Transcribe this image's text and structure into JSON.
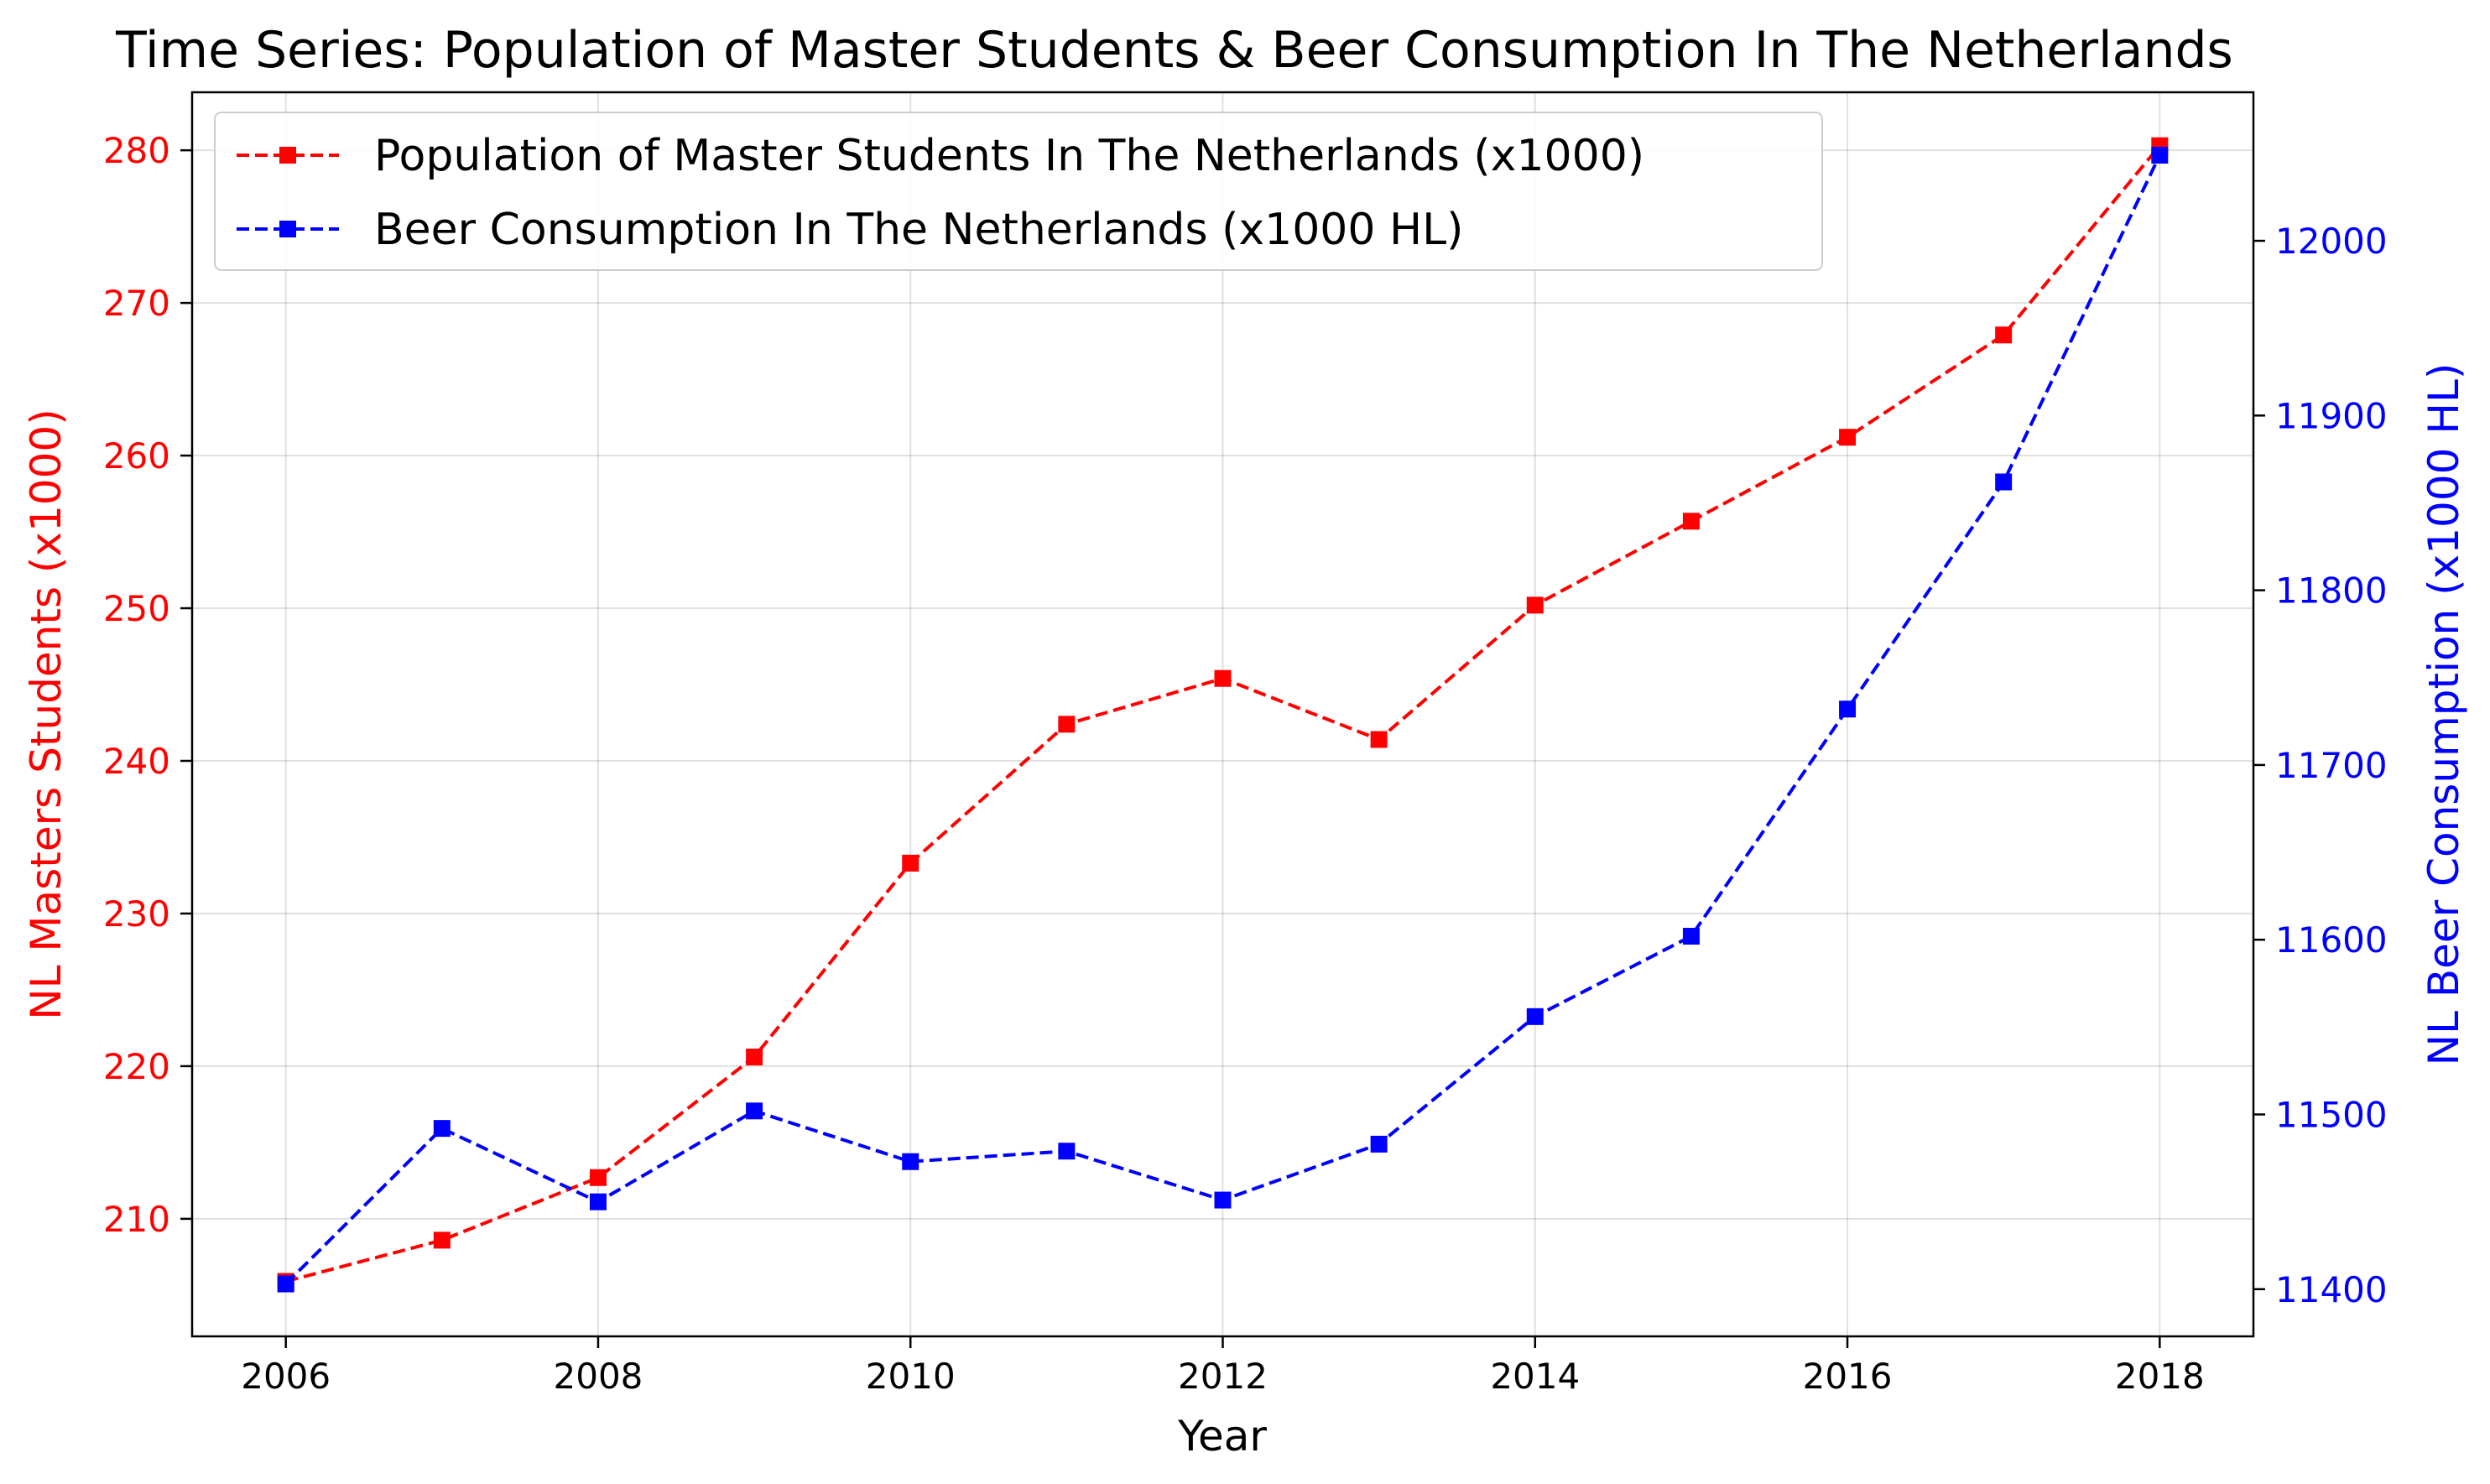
{
  "chart_data": {
    "type": "line",
    "title": "Time Series: Population of Master Students & Beer Consumption In The Netherlands",
    "xlabel": "Year",
    "ylabel_left": "NL Masters Students (x1000)",
    "ylabel_right": "NL Beer Consumption (x1000 HL)",
    "x": [
      2006,
      2007,
      2008,
      2009,
      2010,
      2011,
      2012,
      2013,
      2014,
      2015,
      2016,
      2017,
      2018
    ],
    "xlim": [
      2005.4,
      2018.6
    ],
    "xticks": [
      2006,
      2008,
      2010,
      2012,
      2014,
      2016,
      2018
    ],
    "ylim_left": [
      202.3,
      283.8
    ],
    "yticks_left": [
      210,
      220,
      230,
      240,
      250,
      260,
      270,
      280
    ],
    "ylim_right": [
      11373,
      12085
    ],
    "yticks_right": [
      11400,
      11500,
      11600,
      11700,
      11800,
      11900,
      12000
    ],
    "grid": true,
    "legend_position": "upper-left",
    "colors": {
      "left_axis": "#ff0000",
      "right_axis": "#0000ff"
    },
    "series": [
      {
        "name": "Population of Master Students In The Netherlands (x1000)",
        "axis": "left",
        "color": "#ff0000",
        "linestyle": "dashed",
        "marker": "square",
        "values": [
          205.9,
          208.6,
          212.7,
          220.6,
          233.3,
          242.4,
          245.4,
          241.4,
          250.2,
          255.7,
          261.2,
          267.9,
          280.3
        ]
      },
      {
        "name": "Beer Consumption In The Netherlands (x1000 HL)",
        "axis": "right",
        "color": "#0000ff",
        "linestyle": "dashed",
        "marker": "square",
        "values": [
          11403,
          11492,
          11450,
          11502,
          11473,
          11479,
          11451,
          11483,
          11556,
          11602,
          11732,
          11862,
          12049
        ]
      }
    ]
  }
}
